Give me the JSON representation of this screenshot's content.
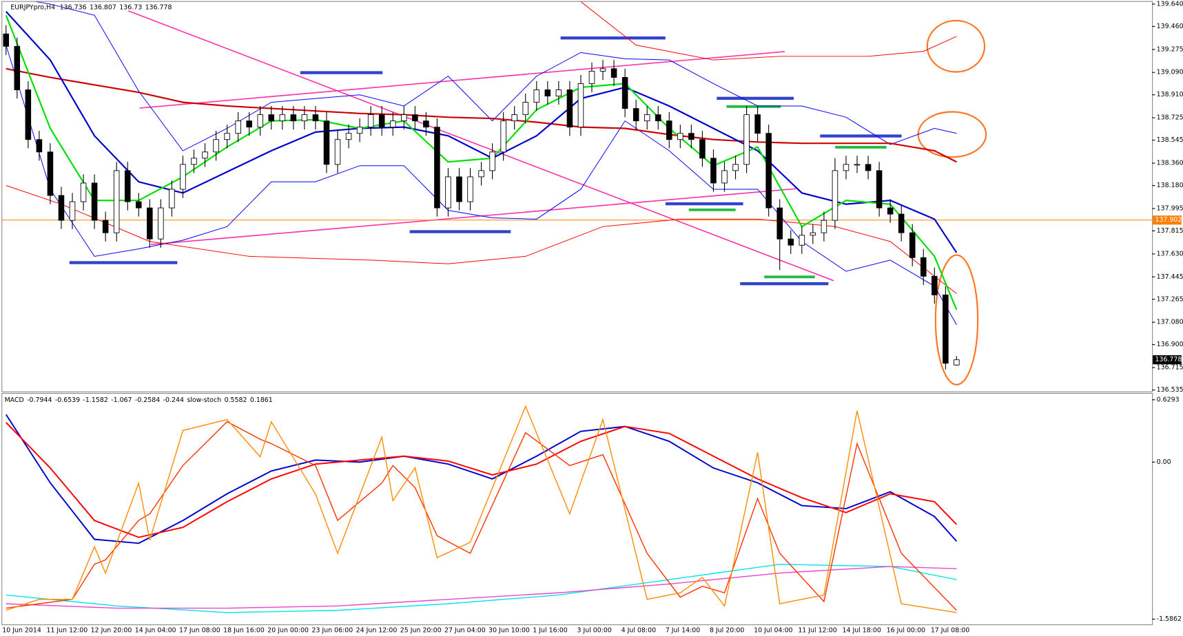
{
  "chart_data": [
    {
      "type": "candlestick",
      "title": "EURJPYpro,H4",
      "categories": [
        "10 Jun 2014",
        null,
        null,
        null,
        "11 Jun 12:00",
        null,
        null,
        null,
        "12 Jun 20:00",
        null,
        null,
        null,
        "14 Jun 04:00",
        null,
        null,
        null,
        "17 Jun 08:00",
        null,
        null,
        null,
        "18 Jun 16:00",
        null,
        null,
        null,
        "20 Jun 00:00",
        null,
        null,
        null,
        "23 Jun 06:00",
        null,
        null,
        null,
        "24 Jun 12:00",
        null,
        null,
        null,
        "25 Jun 20:00",
        null,
        null,
        null,
        "27 Jun 04:00",
        null,
        null,
        null,
        "30 Jun 10:00",
        null,
        null,
        null,
        "1 Jul 16:00",
        null,
        null,
        null,
        "3 Jul 00:00",
        null,
        null,
        null,
        "4 Jul 08:00",
        null,
        null,
        null,
        "7 Jul 14:00",
        null,
        null,
        null,
        "8 Jul 20:00",
        null,
        null,
        null,
        "10 Jul 04:00",
        null,
        null,
        null,
        "11 Jul 12:00",
        null,
        null,
        null,
        "14 Jul 18:00",
        null,
        null,
        null,
        "16 Jul 00:00",
        null,
        null,
        null,
        "17 Jul 08:00",
        null,
        null
      ],
      "open": [
        139.4,
        139.3,
        138.95,
        138.55,
        138.45,
        138.1,
        137.9,
        138.05,
        138.2,
        137.9,
        137.8,
        138.3,
        138.05,
        138.0,
        137.75,
        138.0,
        138.15,
        138.35,
        138.4,
        138.45,
        138.55,
        138.6,
        138.7,
        138.65,
        138.75,
        138.7,
        138.75,
        138.7,
        138.75,
        138.7,
        138.35,
        138.55,
        138.6,
        138.65,
        138.75,
        138.65,
        138.7,
        138.75,
        138.7,
        138.65,
        138.0,
        138.25,
        138.05,
        138.25,
        138.3,
        138.45,
        138.7,
        138.75,
        138.85,
        138.95,
        138.9,
        138.95,
        138.65,
        139.0,
        139.1,
        139.12,
        139.05,
        138.8,
        138.7,
        138.75,
        138.7,
        138.55,
        138.6,
        138.55,
        138.4,
        138.2,
        138.3,
        138.35,
        138.75,
        138.6,
        138.0,
        137.75,
        137.7,
        137.78,
        137.8,
        137.9,
        138.3,
        138.35,
        138.35,
        138.3,
        138.0,
        137.95,
        137.8,
        137.6,
        137.45,
        137.3,
        136.736
      ],
      "high": [
        139.47,
        139.37,
        139.02,
        138.62,
        138.52,
        138.17,
        138.12,
        138.27,
        138.27,
        137.97,
        138.37,
        138.37,
        138.12,
        138.07,
        138.07,
        138.22,
        138.42,
        138.47,
        138.52,
        138.62,
        138.67,
        138.77,
        138.77,
        138.82,
        138.82,
        138.82,
        138.82,
        138.82,
        138.82,
        138.77,
        138.62,
        138.67,
        138.72,
        138.82,
        138.82,
        138.77,
        138.82,
        138.82,
        138.77,
        138.72,
        138.32,
        138.32,
        138.32,
        138.37,
        138.52,
        138.77,
        138.82,
        138.92,
        139.02,
        139.02,
        139.02,
        139.02,
        139.07,
        139.17,
        139.19,
        139.19,
        139.12,
        138.87,
        138.82,
        138.82,
        138.77,
        138.67,
        138.67,
        138.62,
        138.47,
        138.37,
        138.42,
        138.82,
        138.82,
        138.67,
        138.07,
        137.82,
        137.85,
        137.87,
        137.97,
        138.4,
        138.42,
        138.42,
        138.42,
        138.37,
        138.07,
        138.02,
        137.87,
        137.67,
        137.52,
        137.37,
        136.807
      ],
      "low": [
        139.23,
        138.88,
        138.48,
        138.38,
        138.03,
        137.83,
        137.83,
        137.98,
        137.83,
        137.73,
        137.73,
        137.98,
        137.93,
        137.68,
        137.68,
        137.93,
        138.08,
        138.28,
        138.33,
        138.38,
        138.48,
        138.53,
        138.58,
        138.58,
        138.63,
        138.63,
        138.63,
        138.63,
        138.63,
        138.28,
        138.28,
        138.48,
        138.53,
        138.58,
        138.58,
        138.58,
        138.63,
        138.63,
        138.58,
        137.93,
        137.93,
        137.98,
        137.98,
        138.18,
        138.23,
        138.38,
        138.63,
        138.68,
        138.78,
        138.83,
        138.83,
        138.58,
        138.58,
        138.93,
        139.03,
        138.98,
        138.73,
        138.63,
        138.63,
        138.63,
        138.48,
        138.48,
        138.48,
        138.33,
        138.13,
        138.13,
        138.23,
        138.28,
        138.53,
        137.93,
        137.5,
        137.63,
        137.63,
        137.71,
        137.73,
        137.83,
        138.23,
        138.28,
        138.23,
        137.93,
        137.88,
        137.73,
        137.53,
        137.38,
        137.23,
        136.7,
        136.73
      ],
      "close": [
        139.3,
        138.95,
        138.55,
        138.45,
        138.1,
        137.9,
        138.05,
        138.2,
        137.9,
        137.8,
        138.3,
        138.05,
        138.0,
        137.75,
        138.0,
        138.15,
        138.35,
        138.4,
        138.45,
        138.55,
        138.6,
        138.7,
        138.65,
        138.75,
        138.7,
        138.75,
        138.7,
        138.75,
        138.7,
        138.35,
        138.55,
        138.6,
        138.65,
        138.75,
        138.65,
        138.7,
        138.75,
        138.7,
        138.65,
        138.0,
        138.25,
        138.05,
        138.25,
        138.3,
        138.45,
        138.7,
        138.75,
        138.85,
        138.95,
        138.9,
        138.95,
        138.65,
        139.0,
        139.1,
        139.12,
        139.05,
        138.8,
        138.7,
        138.75,
        138.7,
        138.55,
        138.6,
        138.55,
        138.4,
        138.2,
        138.3,
        138.35,
        138.75,
        138.6,
        138.0,
        137.75,
        137.7,
        137.78,
        137.8,
        137.9,
        138.3,
        138.35,
        138.35,
        138.3,
        138.0,
        137.95,
        137.8,
        137.6,
        137.45,
        137.3,
        136.75,
        136.778
      ],
      "up_color": "#ffffff",
      "down_color": "#000000",
      "ylim": [
        136.535,
        139.64
      ],
      "yticks": [
        {
          "value": 139.64,
          "label": "139.640"
        },
        {
          "value": 139.46,
          "label": "139.460"
        },
        139.275,
        {
          "value": 139.09,
          "label": "139.090"
        },
        {
          "value": 138.91,
          "label": "138.910"
        },
        138.725,
        138.545,
        {
          "value": 138.36,
          "label": "138.360"
        },
        {
          "value": 138.18,
          "label": "138.180"
        },
        137.995,
        137.815,
        {
          "value": 137.63,
          "label": "137.630"
        },
        137.445,
        137.265,
        {
          "value": 137.08,
          "label": "137.080"
        },
        {
          "value": 136.9,
          "label": "136.900"
        },
        136.715,
        136.535
      ],
      "hline": {
        "value": 137.902,
        "color": "#ff8000"
      },
      "series": [
        {
          "color": "#cc0000",
          "x": [
            0,
            4,
            8,
            12,
            16,
            20,
            24,
            28,
            32,
            36,
            40,
            44,
            48,
            52,
            56,
            60,
            64,
            68,
            72,
            76,
            80,
            84,
            86
          ],
          "values": [
            139.12,
            139.05,
            138.99,
            138.93,
            138.85,
            138.82,
            138.8,
            138.78,
            138.76,
            138.75,
            138.73,
            138.72,
            138.69,
            138.65,
            138.64,
            138.59,
            138.55,
            138.53,
            138.52,
            138.52,
            138.52,
            138.46,
            138.37
          ]
        },
        {
          "color": "#0000cc",
          "x": [
            0,
            4,
            8,
            12,
            16,
            20,
            24,
            28,
            32,
            36,
            40,
            44,
            48,
            52,
            56,
            60,
            64,
            68,
            72,
            76,
            80,
            84,
            86
          ],
          "values": [
            139.58,
            139.19,
            138.58,
            138.21,
            138.12,
            138.29,
            138.46,
            138.61,
            138.64,
            138.65,
            138.58,
            138.4,
            138.58,
            138.88,
            138.97,
            138.82,
            138.64,
            138.46,
            138.12,
            138.03,
            138.06,
            137.91,
            137.64
          ]
        },
        {
          "color": "#00e000",
          "x": [
            0,
            4,
            8,
            12,
            16,
            20,
            24,
            28,
            32,
            36,
            40,
            44,
            48,
            52,
            56,
            60,
            64,
            68,
            72,
            76,
            80,
            84,
            86
          ],
          "values": [
            139.55,
            138.64,
            138.06,
            138.06,
            138.25,
            138.49,
            138.7,
            138.71,
            138.64,
            138.7,
            138.37,
            138.4,
            138.79,
            138.97,
            139.0,
            138.64,
            138.34,
            138.49,
            137.85,
            138.06,
            138.03,
            137.61,
            137.18
          ]
        }
      ],
      "bands": [
        {
          "color": "#0000ff",
          "x": [
            0,
            4,
            8,
            12,
            16,
            20,
            24,
            28,
            32,
            36,
            40,
            44,
            48,
            52,
            56,
            60,
            64,
            68,
            72,
            76,
            80,
            84,
            86
          ],
          "values": [
            139.7,
            139.64,
            139.55,
            138.94,
            138.46,
            138.64,
            138.85,
            138.88,
            138.91,
            138.82,
            139.06,
            138.7,
            139.06,
            139.25,
            139.2,
            139.19,
            139.0,
            138.82,
            138.82,
            138.73,
            138.51,
            138.64,
            138.6
          ]
        },
        {
          "color": "#0000ff",
          "x": [
            0,
            4,
            8,
            12,
            16,
            20,
            24,
            28,
            32,
            36,
            40,
            44,
            48,
            52,
            56,
            60,
            64,
            68,
            72,
            76,
            80,
            84,
            86
          ],
          "values": [
            139.31,
            138.15,
            137.61,
            137.67,
            137.74,
            137.85,
            138.21,
            138.21,
            138.34,
            138.34,
            137.98,
            137.92,
            137.91,
            138.15,
            138.7,
            138.46,
            138.15,
            138.15,
            137.73,
            137.49,
            137.58,
            137.37,
            137.06
          ]
        },
        {
          "color": "#ff0000",
          "x": [
            52,
            57,
            64,
            70,
            78,
            83,
            86
          ],
          "values": [
            139.66,
            139.31,
            139.19,
            139.22,
            139.22,
            139.26,
            139.38
          ]
        },
        {
          "color": "#ff0000",
          "x": [
            0,
            5,
            13,
            22,
            33,
            40,
            47,
            54,
            61,
            68,
            75,
            80,
            86
          ],
          "values": [
            138.18,
            138.03,
            137.73,
            137.61,
            137.58,
            137.55,
            137.61,
            137.85,
            137.91,
            137.91,
            137.85,
            137.73,
            137.31
          ]
        }
      ]
    },
    {
      "type": "line",
      "title": "MACD",
      "readouts": [
        -0.7944,
        -0.6539,
        -1.1582,
        -1.067,
        -0.2584,
        -0.244
      ],
      "subtitle": "slow-stoch",
      "subtitle_readouts": [
        0.5582,
        0.1861
      ],
      "ylim": [
        -1.5862,
        0.6293
      ],
      "yticks": [
        0.6293,
        {
          "value": 0,
          "label": "0.00"
        },
        -1.5862
      ],
      "y2lim": [
        0,
        100
      ],
      "series": [
        {
          "color": "#0000cc",
          "x": [
            0,
            4,
            8,
            12,
            16,
            20,
            24,
            28,
            32,
            36,
            40,
            44,
            48,
            52,
            56,
            60,
            64,
            68,
            72,
            76,
            80,
            84,
            86
          ],
          "values": [
            0.48,
            -0.21,
            -0.78,
            -0.82,
            -0.59,
            -0.32,
            -0.09,
            0.02,
            0,
            0.06,
            -0.02,
            -0.17,
            0.06,
            0.31,
            0.36,
            0.21,
            -0.06,
            -0.21,
            -0.44,
            -0.47,
            -0.3,
            -0.55,
            -0.8
          ]
        },
        {
          "color": "#ff0000",
          "x": [
            0,
            4,
            8,
            12,
            16,
            20,
            24,
            28,
            32,
            36,
            40,
            44,
            48,
            52,
            56,
            60,
            64,
            68,
            72,
            76,
            80,
            84,
            86
          ],
          "values": [
            0.4,
            -0.06,
            -0.59,
            -0.76,
            -0.66,
            -0.4,
            -0.17,
            -0.02,
            0.02,
            0.06,
            0.01,
            -0.13,
            -0.02,
            0.21,
            0.36,
            0.29,
            0.06,
            -0.17,
            -0.36,
            -0.51,
            -0.32,
            -0.4,
            -0.63
          ]
        },
        {
          "color": "#00e5ee",
          "axis": "y2",
          "x": [
            0,
            10,
            20,
            30,
            40,
            50,
            60,
            70,
            80,
            86
          ],
          "values": [
            11,
            6,
            3,
            4,
            7,
            11,
            18,
            25,
            24,
            18
          ]
        },
        {
          "color": "#ee44cc",
          "axis": "y2",
          "x": [
            0,
            10,
            20,
            30,
            40,
            50,
            60,
            70,
            80,
            86
          ],
          "values": [
            7,
            5,
            5,
            6,
            9,
            12,
            16,
            21,
            24,
            23
          ]
        },
        {
          "color": "#ff3300",
          "axis": "y2",
          "x": [
            0,
            3,
            6,
            8,
            9,
            12,
            13,
            16,
            20,
            23,
            24,
            28,
            30,
            34,
            35,
            37,
            39,
            42,
            47,
            51,
            54,
            58,
            61,
            63,
            65,
            68,
            70,
            74,
            77,
            81,
            86
          ],
          "values": [
            5,
            7,
            9,
            25,
            27,
            45,
            48,
            70,
            90,
            82,
            80,
            70,
            45,
            62,
            70,
            60,
            38,
            30,
            85,
            70,
            75,
            30,
            10,
            15,
            12,
            55,
            30,
            8,
            80,
            30,
            4
          ]
        },
        {
          "color": "#ff8c00",
          "axis": "y2",
          "x": [
            0,
            3,
            6,
            8,
            9,
            12,
            13,
            16,
            20,
            23,
            24,
            28,
            30,
            34,
            35,
            37,
            39,
            42,
            47,
            51,
            54,
            58,
            61,
            63,
            65,
            68,
            70,
            74,
            77,
            81,
            86
          ],
          "values": [
            4,
            9,
            9,
            33,
            21,
            62,
            36,
            86,
            91,
            74,
            90,
            57,
            30,
            83,
            54,
            69,
            28,
            35,
            97,
            48,
            91,
            9,
            12,
            19,
            6,
            76,
            7,
            11,
            95,
            7,
            3
          ]
        }
      ]
    }
  ]
}
